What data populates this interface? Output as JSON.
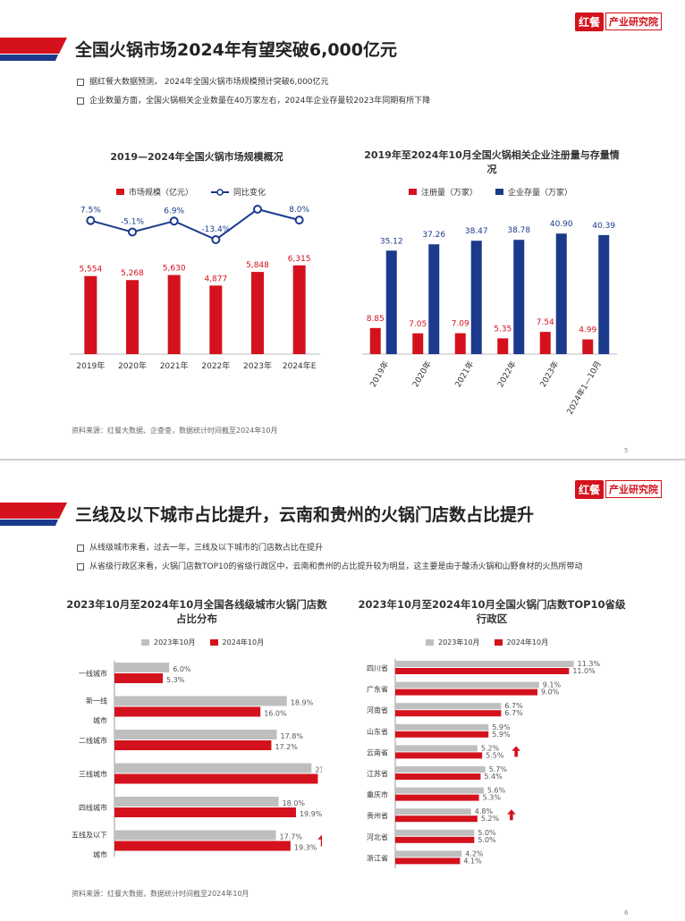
{
  "brand": {
    "logo": "红餐",
    "name": "产业研究院"
  },
  "slide1": {
    "title": "全国火锅市场2024年有望突破6,000亿元",
    "bullets": [
      "据红餐大数据预测， 2024年全国火锅市场规模预计突破6,000亿元",
      "企业数量方面，全国火锅相关企业数量在40万家左右，2024年企业存量较2023年同期有所下降"
    ],
    "chart1_title": "2019—2024年全国火锅市场规模概况",
    "chart2_title": "2019年至2024年10月全国火锅相关企业注册量与存量情况",
    "source": "资料来源：红餐大数据、企查查，数据统计时间截至2024年10月",
    "page": "5"
  },
  "slide2": {
    "title": "三线及以下城市占比提升，云南和贵州的火锅门店数占比提升",
    "bullets": [
      "从线级城市来看，过去一年，三线及以下城市的门店数占比在提升",
      "从省级行政区来看，火锅门店数TOP10的省级行政区中，云南和贵州的占比提升较为明显，这主要是由于酸汤火锅和山野食材的火热所带动"
    ],
    "chart3_title": "2023年10月至2024年10月全国各线级城市火锅门店数占比分布",
    "chart4_title": "2023年10月至2024年10月全国火锅门店数TOP10省级行政区",
    "source": "资料来源：红餐大数据，数据统计时间截至2024年10月",
    "page": "6"
  },
  "colors": {
    "red": "#d4121d",
    "navy": "#1b3a8c",
    "gray": "#bfbfbf"
  },
  "chart_data": [
    {
      "type": "bar",
      "title": "2019—2024年全国火锅市场规模概况",
      "categories": [
        "2019年",
        "2020年",
        "2021年",
        "2022年",
        "2023年",
        "2024年E"
      ],
      "series": [
        {
          "name": "市场规模（亿元）",
          "values": [
            5554,
            5268,
            5630,
            4877,
            5848,
            6315
          ],
          "labels": [
            "5,554",
            "5,268",
            "5,630",
            "4,877",
            "5,848",
            "6,315"
          ]
        },
        {
          "name": "同比变化",
          "type": "line",
          "values": [
            7.5,
            -5.1,
            6.9,
            -13.4,
            19.9,
            8.0
          ],
          "labels": [
            "7.5%",
            "-5.1%",
            "6.9%",
            "-13.4%",
            "19.9%",
            "8.0%"
          ]
        }
      ],
      "ylim": [
        0,
        7000
      ]
    },
    {
      "type": "bar",
      "title": "2019年至2024年10月全国火锅相关企业注册量与存量情况",
      "categories": [
        "2019年",
        "2020年",
        "2021年",
        "2022年",
        "2023年",
        "2024年1—10月"
      ],
      "series": [
        {
          "name": "注册量（万家）",
          "values": [
            8.85,
            7.05,
            7.09,
            5.35,
            7.54,
            4.99
          ],
          "labels": [
            "8.85",
            "7.05",
            "7.09",
            "5.35",
            "7.54",
            "4.99"
          ]
        },
        {
          "name": "企业存量（万家）",
          "values": [
            35.12,
            37.26,
            38.47,
            38.78,
            40.9,
            40.39
          ],
          "labels": [
            "35.12",
            "37.26",
            "38.47",
            "38.78",
            "40.90",
            "40.39"
          ]
        }
      ],
      "ylim": [
        0,
        44
      ]
    },
    {
      "type": "bar",
      "orientation": "horizontal",
      "title": "2023年10月至2024年10月全国各线级城市火锅门店数占比分布",
      "categories": [
        "一线城市",
        "新一线城市",
        "二线城市",
        "三线城市",
        "四线城市",
        "五线及以下城市"
      ],
      "series": [
        {
          "name": "2023年10月",
          "values": [
            6.0,
            18.9,
            17.8,
            21.6,
            18.0,
            17.7
          ],
          "labels": [
            "6.0%",
            "18.9%",
            "17.8%",
            "21.6%",
            "18.0%",
            "17.7%"
          ]
        },
        {
          "name": "2024年10月",
          "values": [
            5.3,
            16.0,
            17.2,
            22.3,
            19.9,
            19.3
          ],
          "labels": [
            "5.3%",
            "16.0%",
            "17.2%",
            "22.3%",
            "19.9%",
            "19.3%"
          ]
        }
      ],
      "up_arrows": [
        false,
        false,
        false,
        true,
        true,
        true
      ],
      "xlim": [
        0,
        25
      ]
    },
    {
      "type": "bar",
      "orientation": "horizontal",
      "title": "2023年10月至2024年10月全国火锅门店数TOP10省级行政区",
      "categories": [
        "四川省",
        "广东省",
        "河南省",
        "山东省",
        "云南省",
        "江苏省",
        "重庆市",
        "贵州省",
        "河北省",
        "浙江省"
      ],
      "series": [
        {
          "name": "2023年10月",
          "values": [
            11.3,
            9.1,
            6.7,
            5.9,
            5.2,
            5.7,
            5.6,
            4.8,
            5.0,
            4.2
          ],
          "labels": [
            "11.3%",
            "9.1%",
            "6.7%",
            "5.9%",
            "5.2%",
            "5.7%",
            "5.6%",
            "4.8%",
            "5.0%",
            "4.2%"
          ]
        },
        {
          "name": "2024年10月",
          "values": [
            11.0,
            9.0,
            6.7,
            5.9,
            5.5,
            5.4,
            5.3,
            5.2,
            5.0,
            4.1
          ],
          "labels": [
            "11.0%",
            "9.0%",
            "6.7%",
            "5.9%",
            "5.5%",
            "5.4%",
            "5.3%",
            "5.2%",
            "5.0%",
            "4.1%"
          ]
        }
      ],
      "up_arrows": [
        false,
        false,
        false,
        false,
        true,
        false,
        false,
        true,
        false,
        false
      ],
      "xlim": [
        0,
        12
      ]
    }
  ]
}
